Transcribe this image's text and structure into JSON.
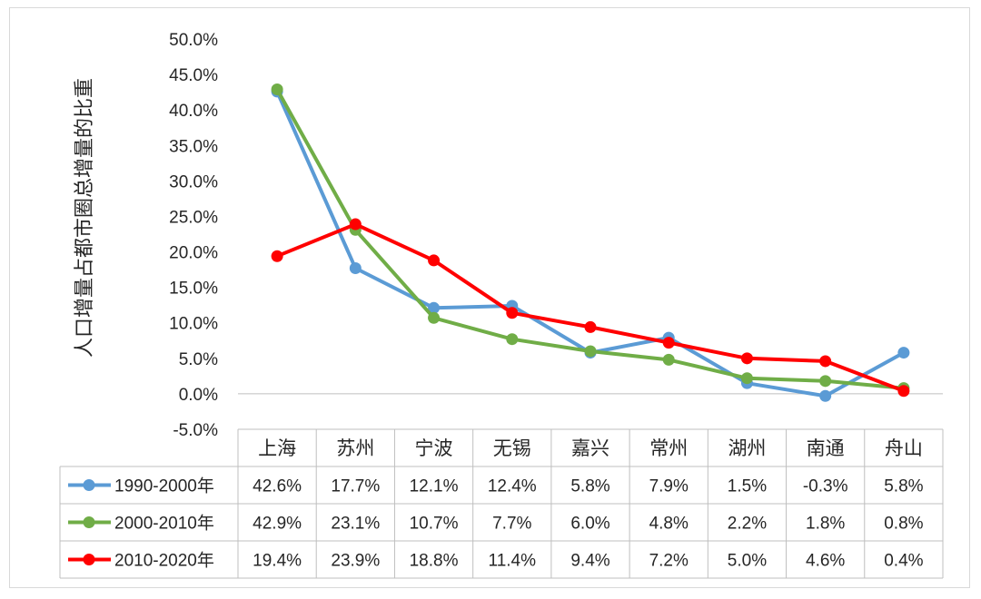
{
  "chart_data": {
    "type": "line",
    "title": "",
    "xlabel": "",
    "ylabel": "人口增量占都市圈总增量的比重",
    "ylim": [
      -5.0,
      50.0
    ],
    "ytick_step": 5.0,
    "yticks": [
      "-5.0%",
      "0.0%",
      "5.0%",
      "10.0%",
      "15.0%",
      "20.0%",
      "25.0%",
      "30.0%",
      "35.0%",
      "40.0%",
      "45.0%",
      "50.0%"
    ],
    "categories": [
      "上海",
      "苏州",
      "宁波",
      "无锡",
      "嘉兴",
      "常州",
      "湖州",
      "南通",
      "舟山"
    ],
    "grid": false,
    "legend": "data-table",
    "series": [
      {
        "name": "1990-2000年",
        "color": "#5b9bd5",
        "values": [
          42.6,
          17.7,
          12.1,
          12.4,
          5.8,
          7.9,
          1.5,
          -0.3,
          5.8
        ],
        "labels": [
          "42.6%",
          "17.7%",
          "12.1%",
          "12.4%",
          "5.8%",
          "7.9%",
          "1.5%",
          "-0.3%",
          "5.8%"
        ]
      },
      {
        "name": "2000-2010年",
        "color": "#70ad47",
        "values": [
          42.9,
          23.1,
          10.7,
          7.7,
          6.0,
          4.8,
          2.2,
          1.8,
          0.8
        ],
        "labels": [
          "42.9%",
          "23.1%",
          "10.7%",
          "7.7%",
          "6.0%",
          "4.8%",
          "2.2%",
          "1.8%",
          "0.8%"
        ]
      },
      {
        "name": "2010-2020年",
        "color": "#ff0000",
        "values": [
          19.4,
          23.9,
          18.8,
          11.4,
          9.4,
          7.2,
          5.0,
          4.6,
          0.4
        ],
        "labels": [
          "19.4%",
          "23.9%",
          "18.8%",
          "11.4%",
          "9.4%",
          "7.2%",
          "5.0%",
          "4.6%",
          "0.4%"
        ]
      }
    ]
  }
}
